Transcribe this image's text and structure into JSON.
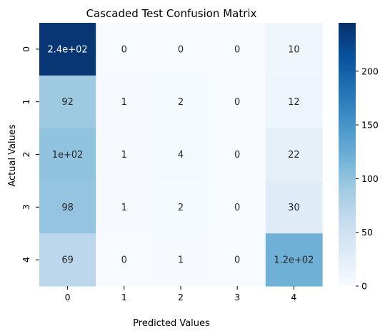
{
  "chart_data": {
    "type": "heatmap",
    "title": "Cascaded Test Confusion Matrix",
    "xlabel": "Predicted Values",
    "ylabel": "Actual Values",
    "x_categories": [
      "0",
      "1",
      "2",
      "3",
      "4"
    ],
    "y_categories": [
      "0",
      "1",
      "2",
      "3",
      "4"
    ],
    "values": [
      [
        240,
        0,
        0,
        0,
        10
      ],
      [
        92,
        1,
        2,
        0,
        12
      ],
      [
        100,
        1,
        4,
        0,
        22
      ],
      [
        98,
        1,
        2,
        0,
        30
      ],
      [
        69,
        0,
        1,
        0,
        120
      ]
    ],
    "cell_labels": [
      [
        "2.4e+02",
        "0",
        "0",
        "0",
        "10"
      ],
      [
        "92",
        "1",
        "2",
        "0",
        "12"
      ],
      [
        "1e+02",
        "1",
        "4",
        "0",
        "22"
      ],
      [
        "98",
        "1",
        "2",
        "0",
        "30"
      ],
      [
        "69",
        "0",
        "1",
        "0",
        "1.2e+02"
      ]
    ],
    "colorbar": {
      "range": [
        0,
        245
      ],
      "ticks": [
        0,
        50,
        100,
        150,
        200
      ],
      "colormap": "Blues"
    }
  }
}
